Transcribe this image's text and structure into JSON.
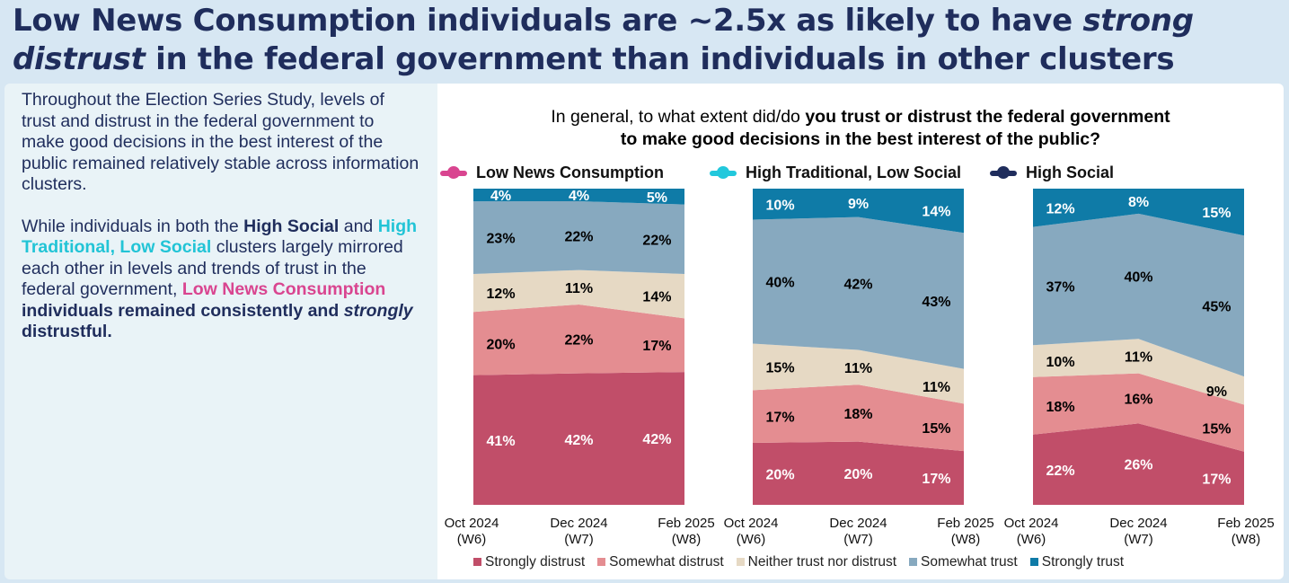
{
  "title": {
    "parts": [
      {
        "t": "Low News Consumption individuals are ~2.5x as likely to have ",
        "i": false
      },
      {
        "t": "strong distrust",
        "i": true
      },
      {
        "t": " in the federal government than individuals in other clusters",
        "i": false
      }
    ]
  },
  "left_text": {
    "p1": "Throughout the Election Series Study, levels of trust and distrust in the federal government to make good decisions in the best interest of the public remained relatively stable across information clusters.",
    "p2": [
      {
        "t": "While individuals in both the ",
        "c": "#1f2d5c",
        "b": false
      },
      {
        "t": "High Social",
        "c": "#1f2d5c",
        "b": true
      },
      {
        "t": " and ",
        "c": "#1f2d5c",
        "b": false
      },
      {
        "t": "High Traditional, Low Social",
        "c": "#22c4d6",
        "b": true
      },
      {
        "t": " clusters largely mirrored each other in levels and trends of trust in the federal government, ",
        "c": "#1f2d5c",
        "b": false
      },
      {
        "t": "Low News Consumption",
        "c": "#d94590",
        "b": true
      },
      {
        "t": " individuals remained consistently and ",
        "c": "#1f2d5c",
        "b": true
      },
      {
        "t": "strongly",
        "c": "#1f2d5c",
        "b": true,
        "i": true
      },
      {
        "t": " distrustful.",
        "c": "#1f2d5c",
        "b": true
      }
    ]
  },
  "chart_data": {
    "type": "area",
    "question_parts": [
      {
        "t": "In general, to what extent did/do ",
        "b": false
      },
      {
        "t": "you trust or distrust the federal government",
        "b": true
      },
      {
        "t": "to make good decisions in the best interest of the public?",
        "b": true,
        "br": true
      }
    ],
    "categories": [
      [
        "Oct 2024",
        "(W6)"
      ],
      [
        "Dec 2024",
        "(W7)"
      ],
      [
        "Feb 2025",
        "(W8)"
      ]
    ],
    "legend": [
      {
        "name": "Strongly distrust",
        "color": "#c14e69"
      },
      {
        "name": "Somewhat distrust",
        "color": "#e48d91"
      },
      {
        "name": "Neither trust nor distrust",
        "color": "#e6d9c4"
      },
      {
        "name": "Somewhat trust",
        "color": "#87a9bf"
      },
      {
        "name": "Strongly trust",
        "color": "#0f7ba7"
      }
    ],
    "label_colors": [
      "#fff",
      "#000",
      "#000",
      "#000",
      "#fff"
    ],
    "panels": [
      {
        "name": "Low News Consumption",
        "marker": "#d94590",
        "series": [
          [
            41,
            42,
            42
          ],
          [
            20,
            22,
            17
          ],
          [
            12,
            11,
            14
          ],
          [
            23,
            22,
            22
          ],
          [
            4,
            4,
            5
          ]
        ]
      },
      {
        "name": "High Traditional, Low Social",
        "marker": "#22c8dc",
        "series": [
          [
            20,
            20,
            17
          ],
          [
            17,
            18,
            15
          ],
          [
            15,
            11,
            11
          ],
          [
            40,
            42,
            43
          ],
          [
            10,
            9,
            14
          ]
        ]
      },
      {
        "name": "High Social",
        "marker": "#1f2d5c",
        "series": [
          [
            22,
            26,
            17
          ],
          [
            18,
            16,
            15
          ],
          [
            10,
            11,
            9
          ],
          [
            37,
            40,
            45
          ],
          [
            12,
            8,
            15
          ]
        ]
      }
    ],
    "ylim": [
      0,
      100
    ]
  }
}
